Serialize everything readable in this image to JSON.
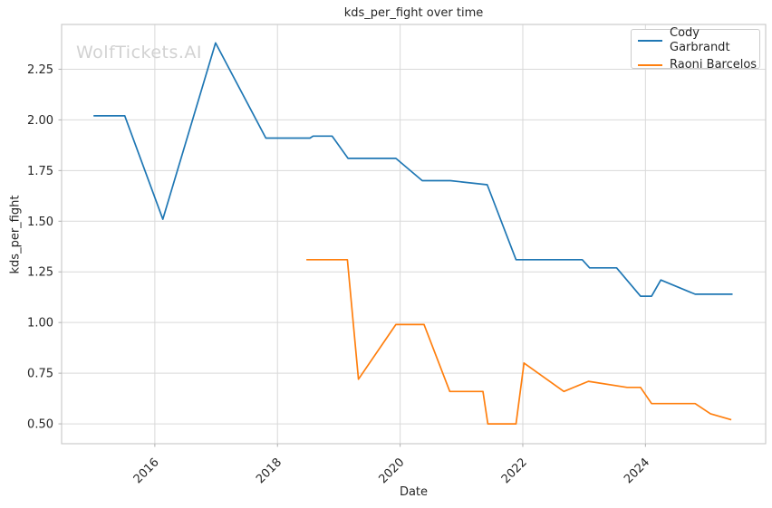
{
  "chart_data": {
    "type": "line",
    "title": "kds_per_fight over time",
    "xlabel": "Date",
    "ylabel": "kds_per_fight",
    "watermark": "WolfTickets.AI",
    "grid": true,
    "legend_position": "upper right",
    "xlim": [
      2014.48,
      2025.96
    ],
    "ylim": [
      0.402,
      2.471
    ],
    "x_ticks": [
      2016,
      2018,
      2020,
      2022,
      2024
    ],
    "y_ticks": [
      0.5,
      0.75,
      1.0,
      1.25,
      1.5,
      1.75,
      2.0,
      2.25
    ],
    "series": [
      {
        "name": "Cody Garbrandt",
        "color": "#1f77b4",
        "x": [
          2015.0,
          2015.51,
          2016.13,
          2016.99,
          2017.81,
          2018.53,
          2018.58,
          2018.89,
          2019.15,
          2019.93,
          2020.36,
          2020.82,
          2021.42,
          2021.89,
          2022.97,
          2023.09,
          2023.53,
          2023.92,
          2024.1,
          2024.25,
          2024.81,
          2025.42
        ],
        "y": [
          2.02,
          2.02,
          1.51,
          2.38,
          1.91,
          1.91,
          1.92,
          1.92,
          1.81,
          1.81,
          1.7,
          1.7,
          1.68,
          1.31,
          1.31,
          1.27,
          1.27,
          1.13,
          1.13,
          1.21,
          1.14,
          1.14
        ]
      },
      {
        "name": "Raoni Barcelos",
        "color": "#ff7f0e",
        "x": [
          2018.47,
          2019.14,
          2019.32,
          2019.93,
          2020.39,
          2020.81,
          2021.35,
          2021.43,
          2021.89,
          2022.02,
          2022.67,
          2023.07,
          2023.7,
          2023.92,
          2024.1,
          2024.81,
          2025.06,
          2025.4
        ],
        "y": [
          1.31,
          1.31,
          0.72,
          0.99,
          0.99,
          0.66,
          0.66,
          0.5,
          0.5,
          0.8,
          0.66,
          0.71,
          0.68,
          0.68,
          0.6,
          0.6,
          0.55,
          0.52
        ]
      }
    ],
    "colors": {
      "background": "#ffffff",
      "grid": "#d9d9d9",
      "spine": "#cccccc",
      "tick": "#b0b0b0",
      "text": "#262626",
      "watermark": "#d2d2d2"
    }
  }
}
